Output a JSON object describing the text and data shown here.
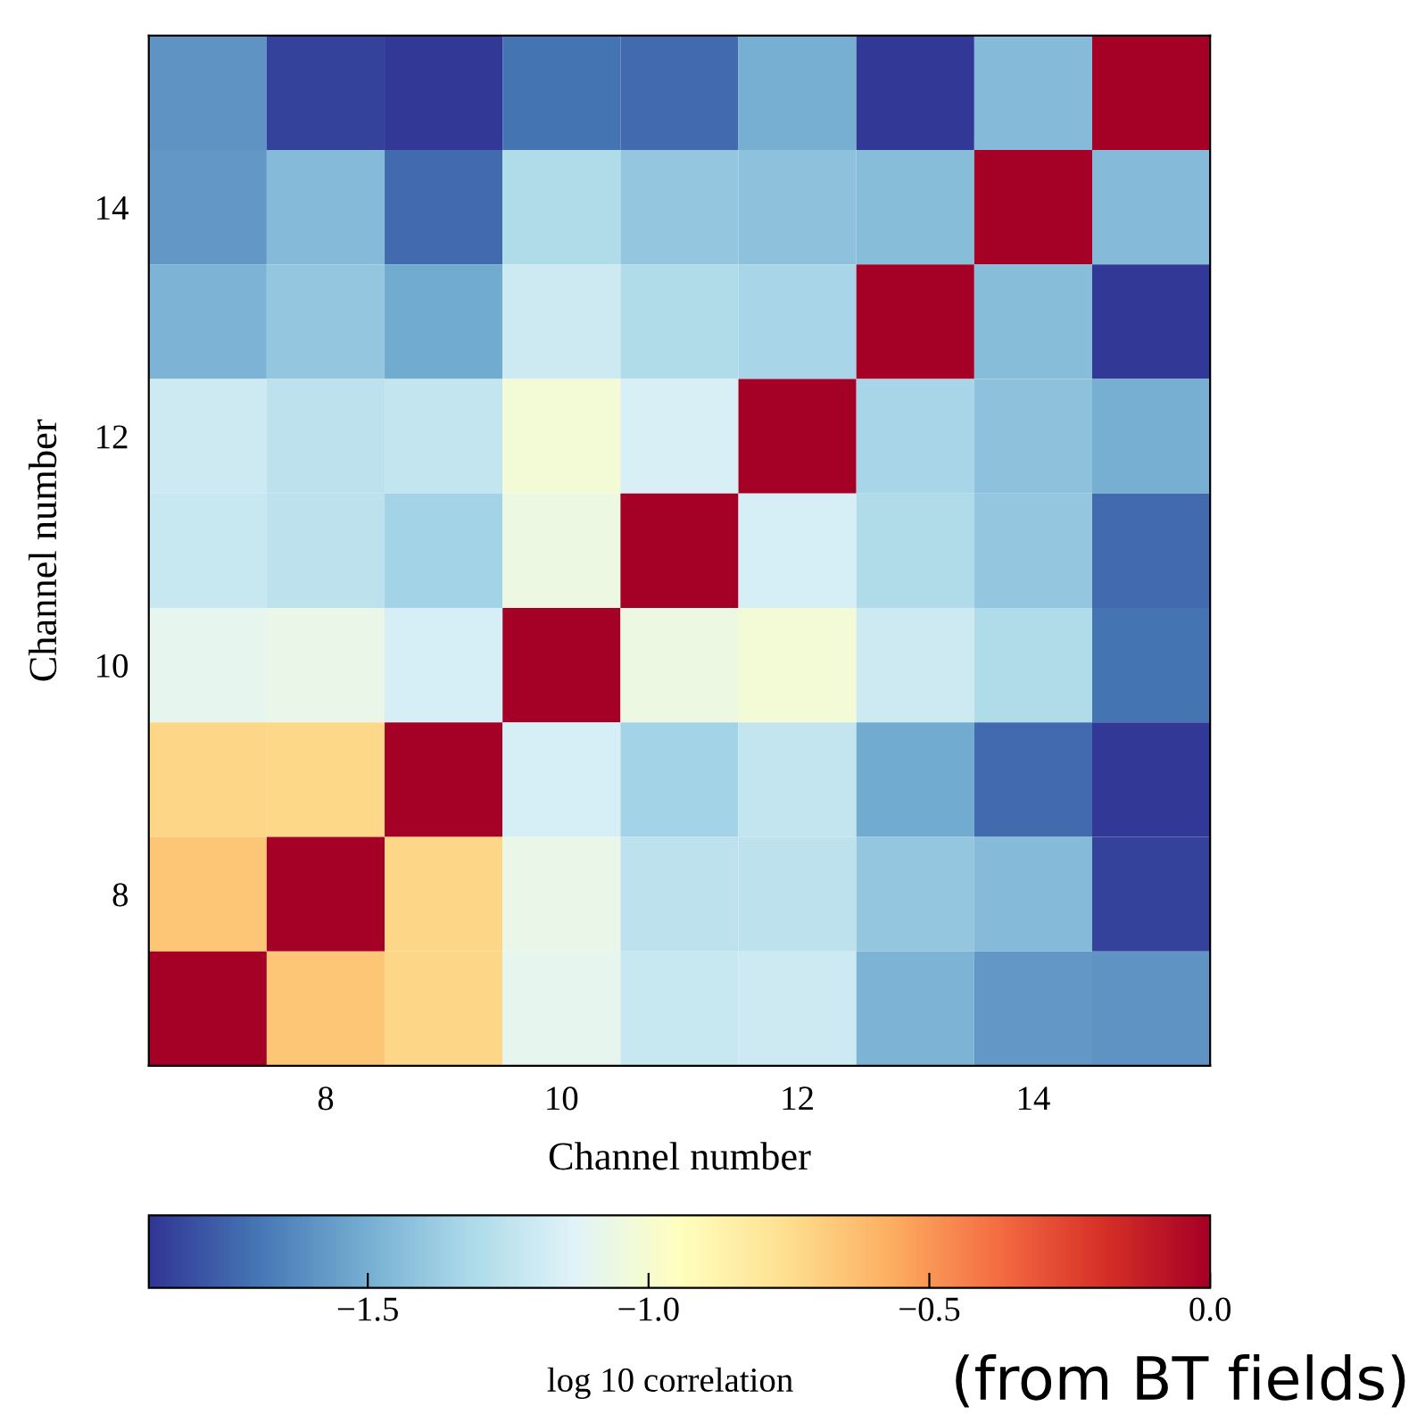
{
  "chart_data": {
    "type": "heatmap",
    "xlabel": "Channel number",
    "ylabel": "Channel number",
    "clabel": "log 10 correlation",
    "categories": [
      null,
      "8",
      null,
      "10",
      null,
      "12",
      null,
      "14",
      null
    ],
    "y_categories": [
      null,
      "14",
      null,
      "12",
      null,
      "10",
      null,
      "8",
      null
    ],
    "cells": [
      [
        -1.6,
        -1.85,
        -1.88,
        -1.7,
        -1.73,
        -1.5,
        -1.88,
        -1.45,
        0
      ],
      [
        -1.58,
        -1.45,
        -1.73,
        -1.3,
        -1.4,
        -1.42,
        -1.44,
        0,
        -1.45
      ],
      [
        -1.48,
        -1.4,
        -1.52,
        -1.2,
        -1.3,
        -1.33,
        0,
        -1.44,
        -1.88
      ],
      [
        -1.2,
        -1.26,
        -1.24,
        -1.02,
        -1.16,
        0,
        -1.33,
        -1.42,
        -1.5
      ],
      [
        -1.22,
        -1.26,
        -1.35,
        -1.06,
        0,
        -1.17,
        -1.3,
        -1.4,
        -1.73
      ],
      [
        -1.1,
        -1.08,
        -1.17,
        0,
        -1.06,
        -1.02,
        -1.2,
        -1.3,
        -1.7
      ],
      [
        -0.72,
        -0.73,
        0,
        -1.17,
        -1.35,
        -1.24,
        -1.52,
        -1.73,
        -1.88
      ],
      [
        -0.65,
        0,
        -0.72,
        -1.08,
        -1.26,
        -1.26,
        -1.4,
        -1.45,
        -1.85
      ],
      [
        0,
        -0.65,
        -0.72,
        -1.1,
        -1.22,
        -1.2,
        -1.48,
        -1.58,
        -1.6
      ]
    ],
    "clim": [
      -1.89,
      0
    ],
    "cticks": [
      {
        "value": -1.5,
        "label": "−1.5"
      },
      {
        "value": -1.0,
        "label": "−1.0"
      },
      {
        "value": -0.5,
        "label": "−0.5"
      },
      {
        "value": 0.0,
        "label": "0.0"
      }
    ],
    "annotations": [
      "(from BT fields)"
    ]
  }
}
